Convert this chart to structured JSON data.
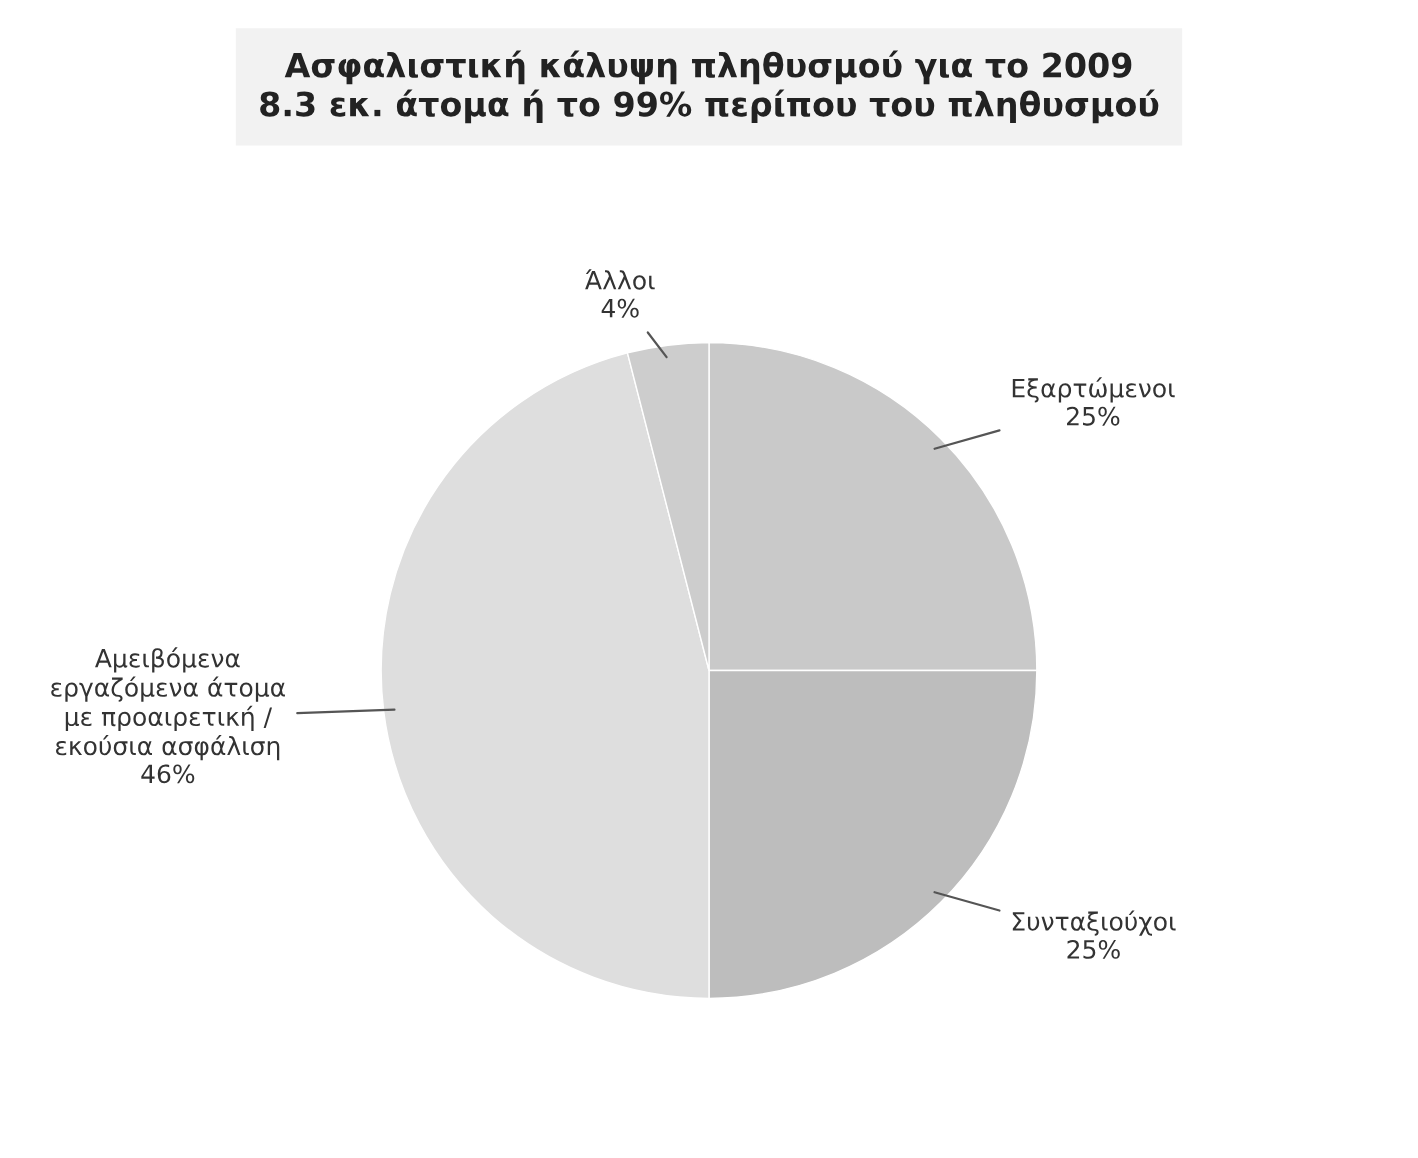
{
  "chart_data": {
    "type": "pie",
    "title": "Ασφαλιστική κάλυψη πληθυσμού για το 2009\n8.3 εκ. άτομα ή το 99% περίπου του πληθυσμού",
    "categories": [
      "Εξαρτώμενοι",
      "Συνταξιούχοι",
      "Αμειβόμενα\nεργαζόμενα άτομα\nμε προαιρετική /\nεκούσια ασφάλιση",
      "Άλλοι"
    ],
    "values": [
      25,
      25,
      46,
      4
    ],
    "value_labels": [
      "25%",
      "25%",
      "46%",
      "4%"
    ],
    "colors": [
      "#c9c9c9",
      "#bdbdbd",
      "#dedede",
      "#cdcdcd"
    ]
  }
}
